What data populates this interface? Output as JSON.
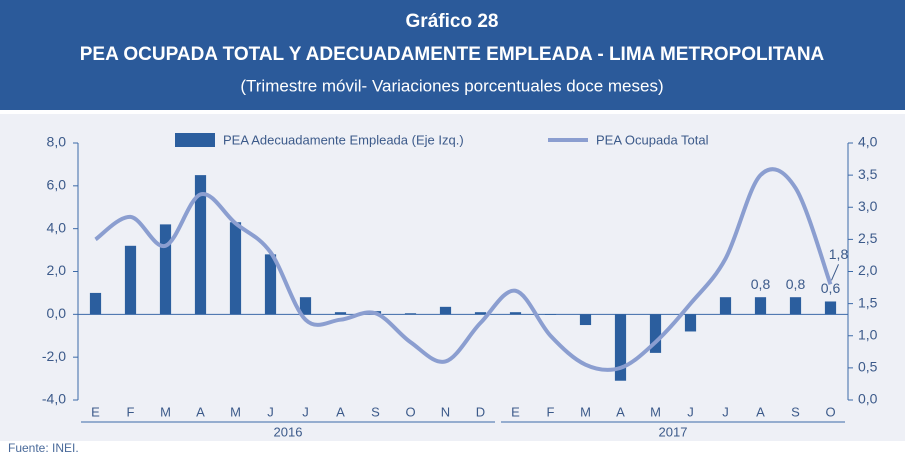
{
  "chart_data": {
    "type": "bar_line",
    "title": "Gráfico 28",
    "subtitle": "PEA OCUPADA TOTAL Y ADECUADAMENTE EMPLEADA - LIMA METROPOLITANA",
    "note": "(Trimestre móvil- Variaciones porcentuales doce meses)",
    "source": "Fuente: INEI.",
    "categories": [
      "E",
      "F",
      "M",
      "A",
      "M",
      "J",
      "J",
      "A",
      "S",
      "O",
      "N",
      "D",
      "E",
      "F",
      "M",
      "A",
      "M",
      "J",
      "J",
      "A",
      "S",
      "O"
    ],
    "x_groups": [
      {
        "label": "2016",
        "size": 12
      },
      {
        "label": "2017",
        "size": 10
      }
    ],
    "series": [
      {
        "name": "PEA Adecuadamente Empleada (Eje Izq.)",
        "type": "bar",
        "color": "#2b5e9e",
        "values": [
          1.0,
          3.2,
          4.2,
          6.5,
          4.3,
          2.8,
          0.8,
          0.1,
          0.15,
          0.05,
          0.35,
          0.1,
          0.1,
          0.0,
          -0.5,
          -3.1,
          -1.8,
          -0.8,
          0.8,
          0.8,
          0.8,
          0.6
        ],
        "value_labels": [
          null,
          null,
          null,
          null,
          null,
          null,
          null,
          null,
          null,
          null,
          null,
          null,
          null,
          null,
          null,
          null,
          null,
          null,
          null,
          "0,8",
          "0,8",
          "0,6"
        ]
      },
      {
        "name": "PEA Ocupada Total",
        "type": "line",
        "axis": "y2",
        "color": "#8b9ed0",
        "values": [
          2.5,
          2.85,
          2.4,
          3.2,
          2.75,
          2.3,
          1.25,
          1.25,
          1.35,
          0.9,
          0.6,
          1.2,
          1.7,
          1.0,
          0.55,
          0.5,
          0.9,
          1.5,
          2.2,
          3.5,
          3.3,
          1.8
        ],
        "value_labels": [
          null,
          null,
          null,
          null,
          null,
          null,
          null,
          null,
          null,
          null,
          null,
          null,
          null,
          null,
          null,
          null,
          null,
          null,
          null,
          null,
          null,
          "1,8"
        ]
      }
    ],
    "ylim": [
      -4,
      8
    ],
    "yticks": [
      {
        "value": -4,
        "label": "-4,0"
      },
      {
        "value": -2,
        "label": "-2,0"
      },
      {
        "value": 0,
        "label": "0,0"
      },
      {
        "value": 2,
        "label": "2,0"
      },
      {
        "value": 4,
        "label": "4,0"
      },
      {
        "value": 6,
        "label": "6,0"
      },
      {
        "value": 8,
        "label": "8,0"
      }
    ],
    "y2lim": [
      0,
      4
    ],
    "y2ticks": [
      {
        "value": 0,
        "label": "0,0"
      },
      {
        "value": 0.5,
        "label": "0,5"
      },
      {
        "value": 1,
        "label": "1,0"
      },
      {
        "value": 1.5,
        "label": "1,5"
      },
      {
        "value": 2,
        "label": "2,0"
      },
      {
        "value": 2.5,
        "label": "2,5"
      },
      {
        "value": 3,
        "label": "3,0"
      },
      {
        "value": 3.5,
        "label": "3,5"
      },
      {
        "value": 4,
        "label": "4,0"
      }
    ],
    "legend": "top"
  }
}
